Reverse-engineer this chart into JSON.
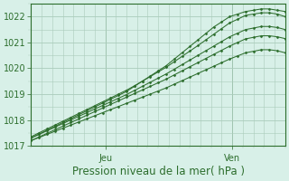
{
  "title": "",
  "xlabel": "Pression niveau de la mer( hPa )",
  "ylabel": "",
  "bg_color": "#d8f0e8",
  "grid_color": "#aaccbb",
  "line_color": "#2d6e2d",
  "ylim": [
    1017.0,
    1022.5
  ],
  "xlim": [
    0,
    48
  ],
  "x_jeu": 14,
  "x_ven": 38,
  "tick_label_fontsize": 7,
  "xlabel_fontsize": 8.5,
  "series": [
    [
      1017.3,
      1017.45,
      1017.6,
      1017.75,
      1017.9,
      1018.05,
      1018.2,
      1018.35,
      1018.5,
      1018.65,
      1018.8,
      1018.95,
      1019.1,
      1019.3,
      1019.5,
      1019.7,
      1019.9,
      1020.1,
      1020.35,
      1020.6,
      1020.85,
      1021.1,
      1021.35,
      1021.6,
      1021.8,
      1022.0,
      1022.1,
      1022.2,
      1022.25,
      1022.3,
      1022.3,
      1022.25,
      1022.2
    ],
    [
      1017.35,
      1017.5,
      1017.65,
      1017.8,
      1017.95,
      1018.1,
      1018.25,
      1018.4,
      1018.55,
      1018.7,
      1018.85,
      1019.0,
      1019.15,
      1019.32,
      1019.5,
      1019.68,
      1019.86,
      1020.04,
      1020.25,
      1020.46,
      1020.67,
      1020.88,
      1021.1,
      1021.32,
      1021.54,
      1021.76,
      1021.9,
      1022.05,
      1022.1,
      1022.15,
      1022.15,
      1022.1,
      1022.0
    ],
    [
      1017.3,
      1017.44,
      1017.58,
      1017.72,
      1017.86,
      1018.0,
      1018.14,
      1018.28,
      1018.42,
      1018.56,
      1018.7,
      1018.84,
      1018.98,
      1019.14,
      1019.3,
      1019.46,
      1019.62,
      1019.78,
      1019.96,
      1020.14,
      1020.32,
      1020.5,
      1020.68,
      1020.86,
      1021.04,
      1021.22,
      1021.36,
      1021.5,
      1021.56,
      1021.62,
      1021.62,
      1021.58,
      1021.5
    ],
    [
      1017.2,
      1017.34,
      1017.48,
      1017.62,
      1017.76,
      1017.9,
      1018.04,
      1018.18,
      1018.32,
      1018.46,
      1018.6,
      1018.74,
      1018.88,
      1019.02,
      1019.16,
      1019.3,
      1019.44,
      1019.58,
      1019.74,
      1019.9,
      1020.06,
      1020.22,
      1020.38,
      1020.54,
      1020.7,
      1020.86,
      1021.0,
      1021.14,
      1021.2,
      1021.26,
      1021.26,
      1021.22,
      1021.15
    ],
    [
      1017.2,
      1017.32,
      1017.44,
      1017.56,
      1017.68,
      1017.8,
      1017.92,
      1018.04,
      1018.16,
      1018.28,
      1018.4,
      1018.52,
      1018.64,
      1018.76,
      1018.88,
      1019.0,
      1019.12,
      1019.24,
      1019.38,
      1019.52,
      1019.66,
      1019.8,
      1019.94,
      1020.08,
      1020.22,
      1020.36,
      1020.48,
      1020.6,
      1020.66,
      1020.72,
      1020.72,
      1020.68,
      1020.6
    ]
  ]
}
